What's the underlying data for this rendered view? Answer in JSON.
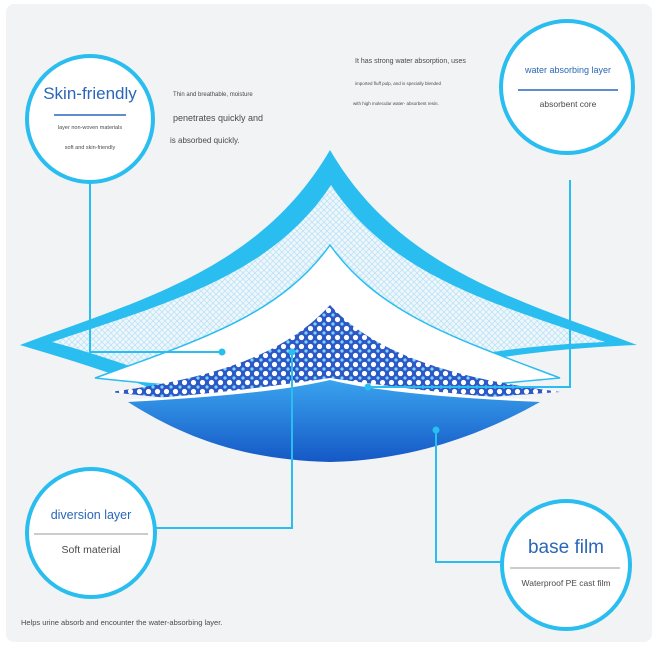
{
  "colors": {
    "background": "#f2f3f5",
    "accent": "#29bdf0",
    "title_blue": "#2a67b8",
    "mesh_blue": "#2f5fd0",
    "film_blue": "#1f6fd6",
    "text_gray": "#4a4a4a"
  },
  "skin": {
    "title": "Skin-friendly",
    "line1": "layer non-woven materials",
    "line2": "soft and skin-friendly"
  },
  "skin_desc": {
    "line1": "Thin and breathable, moisture",
    "line2": "penetrates quickly and",
    "line3": "is absorbed quickly."
  },
  "absorb_desc": {
    "line1": "It has strong water absorption, uses",
    "line2": "imported fluff pulp, and is specially blended",
    "line3": "with high molecular water- absorbent resin."
  },
  "absorb": {
    "title": "water absorbing layer",
    "sub": "absorbent core"
  },
  "diversion": {
    "title": "diversion layer",
    "sub": "Soft material"
  },
  "basefilm": {
    "title": "base film",
    "sub": "Waterproof PE cast film"
  },
  "diversion_desc": "Helps urine absorb and encounter the water-absorbing layer."
}
